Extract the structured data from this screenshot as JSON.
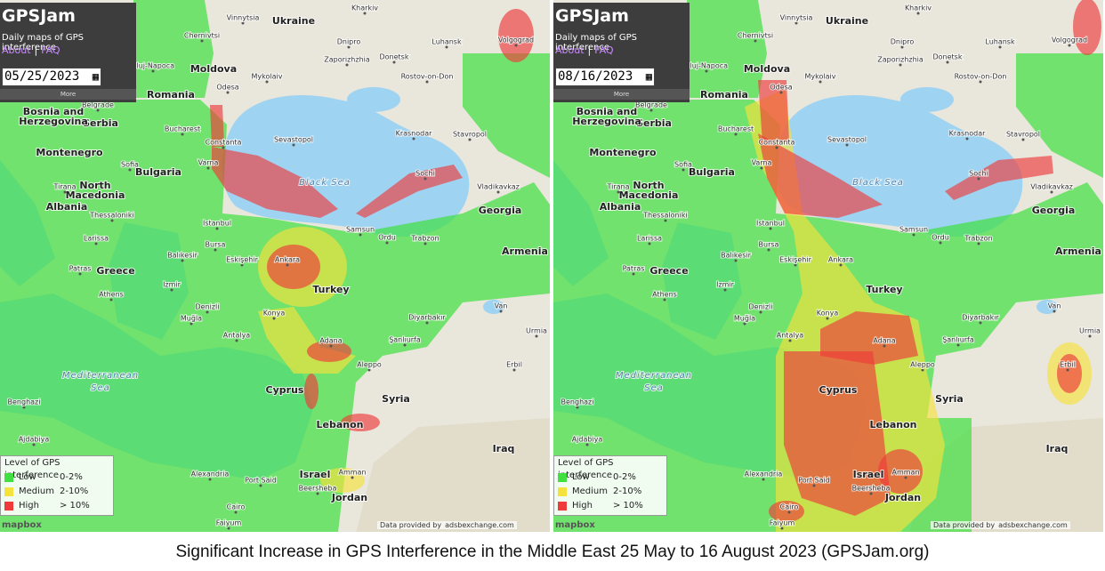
{
  "panels": [
    {
      "app": {
        "title": "GPSJam",
        "subtitle": "Daily maps of GPS interference",
        "links": [
          "About",
          "FAQ"
        ],
        "separator": "|",
        "date": "05/25/2023",
        "more": "More"
      },
      "legend": {
        "title": "Level of GPS interference",
        "items": [
          {
            "label": "Low",
            "range": "0-2%",
            "color": "#3fe03f"
          },
          {
            "label": "Medium",
            "range": "2-10%",
            "color": "#f6e23c"
          },
          {
            "label": "High",
            "range": "> 10%",
            "color": "#ee3a3a"
          }
        ]
      },
      "attribution": {
        "text": "Data provided by",
        "source": "adsbexchange.com"
      },
      "logo": "mapbox"
    },
    {
      "app": {
        "title": "GPSJam",
        "subtitle": "Daily maps of GPS interference",
        "links": [
          "About",
          "FAQ"
        ],
        "separator": "|",
        "date": "08/16/2023",
        "more": "More"
      },
      "legend": {
        "title": "Level of GPS interference",
        "items": [
          {
            "label": "Low",
            "range": "0-2%",
            "color": "#3fe03f"
          },
          {
            "label": "Medium",
            "range": "2-10%",
            "color": "#f6e23c"
          },
          {
            "label": "High",
            "range": "> 10%",
            "color": "#ee3a3a"
          }
        ]
      },
      "attribution": {
        "text": "Data provided by",
        "source": "adsbexchange.com"
      },
      "logo": "mapbox"
    }
  ],
  "map_labels": [
    "Ukraine",
    "Moldova",
    "Romania",
    "Black Sea",
    "Bulgaria",
    "Serbia",
    "Bosnia and",
    "Herzegovina",
    "Montenegro",
    "North",
    "Macedonia",
    "Albania",
    "Greece",
    "Turkey",
    "Georgia",
    "Armenia",
    "Syria",
    "Cyprus",
    "Lebanon",
    "Israel",
    "Jordan",
    "Iraq",
    "Mediterranean",
    "Sea",
    "Kharkiv",
    "Vinnytsia",
    "Chernivtsi",
    "Dnipro",
    "Luhansk",
    "Donetsk",
    "Zaporizhzhia",
    "Mykolaiv",
    "Rostov-on-Don",
    "Volgograd",
    "Odesa",
    "Cluj-Napoca",
    "Belgrade",
    "Bucharest",
    "Constanta",
    "Sevastopol",
    "Krasnodar",
    "Stavropol",
    "Sochi",
    "Vladikavkaz",
    "Varna",
    "Sofia",
    "Tirana",
    "Thessaloniki",
    "Istanbul",
    "Samsun",
    "Ordu",
    "Trabzon",
    "Larissa",
    "Bursa",
    "Balıkesir",
    "Eskişehir",
    "Ankara",
    "Patras",
    "Izmir",
    "Athens",
    "Van",
    "Denizli",
    "Konya",
    "Diyarbakır",
    "Muğla",
    "Urmia",
    "Antalya",
    "Şanlıurfa",
    "Adana",
    "Aleppo",
    "Erbil",
    "Benghazi",
    "Ajdabiya",
    "Alexandria",
    "Port Said",
    "Amman",
    "Beersheba",
    "Cairo",
    "Faiyum"
  ],
  "caption": "Significant Increase in GPS Interference in the Middle East 25 May to 16 August 2023 (GPSJam.org)"
}
